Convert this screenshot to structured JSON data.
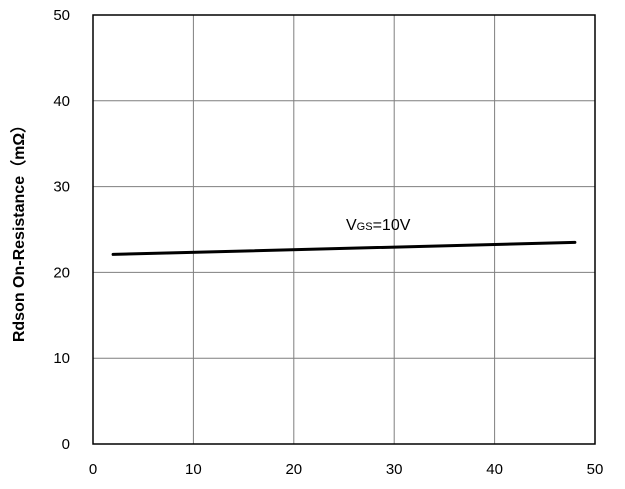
{
  "chart_data": {
    "type": "line",
    "title": "",
    "xlabel": "",
    "ylabel": "Rdson On-Resistance（mΩ）",
    "xlim": [
      0,
      50
    ],
    "ylim": [
      0,
      50
    ],
    "x_ticks": [
      "0",
      "10",
      "20",
      "30",
      "40",
      "50"
    ],
    "y_ticks": [
      "0",
      "10",
      "20",
      "30",
      "40",
      "50"
    ],
    "grid": true,
    "legend": "none",
    "series": [
      {
        "x": [
          2,
          48
        ],
        "y": [
          22.1,
          23.5
        ]
      }
    ],
    "annotations": [
      {
        "main": "V",
        "sub": "GS",
        "rest": "=10V",
        "x": 25,
        "y": 25.5
      }
    ],
    "colors": {
      "line": "#000000",
      "grid": "#7f7f7f",
      "frame": "#000000"
    }
  }
}
